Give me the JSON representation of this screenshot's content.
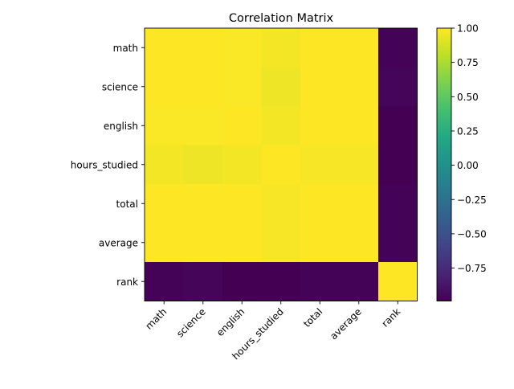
{
  "chart_data": {
    "type": "heatmap",
    "title": "Correlation Matrix",
    "rows": [
      "math",
      "science",
      "english",
      "hours_studied",
      "total",
      "average",
      "rank"
    ],
    "columns": [
      "math",
      "science",
      "english",
      "hours_studied",
      "total",
      "average",
      "rank"
    ],
    "values": [
      [
        1.0,
        1.0,
        0.99,
        0.97,
        1.0,
        1.0,
        -0.98
      ],
      [
        1.0,
        1.0,
        0.99,
        0.95,
        1.0,
        1.0,
        -0.96
      ],
      [
        0.99,
        0.99,
        1.0,
        0.97,
        1.0,
        1.0,
        -0.99
      ],
      [
        0.97,
        0.95,
        0.97,
        1.0,
        0.98,
        0.98,
        -0.99
      ],
      [
        1.0,
        1.0,
        1.0,
        0.98,
        1.0,
        1.0,
        -0.98
      ],
      [
        1.0,
        1.0,
        1.0,
        0.98,
        1.0,
        1.0,
        -0.98
      ],
      [
        -0.98,
        -0.96,
        -0.99,
        -0.99,
        -0.98,
        -0.98,
        1.0
      ]
    ],
    "colormap": "viridis",
    "colorbar": {
      "min": -0.99,
      "max": 1.0,
      "ticks": [
        1.0,
        0.75,
        0.5,
        0.25,
        0.0,
        -0.25,
        -0.5,
        -0.75
      ],
      "tick_labels": [
        "1.00",
        "0.75",
        "0.50",
        "0.25",
        "0.00",
        "−0.25",
        "−0.50",
        "−0.75"
      ]
    },
    "xlabel": "",
    "ylabel": "",
    "grid": false
  }
}
